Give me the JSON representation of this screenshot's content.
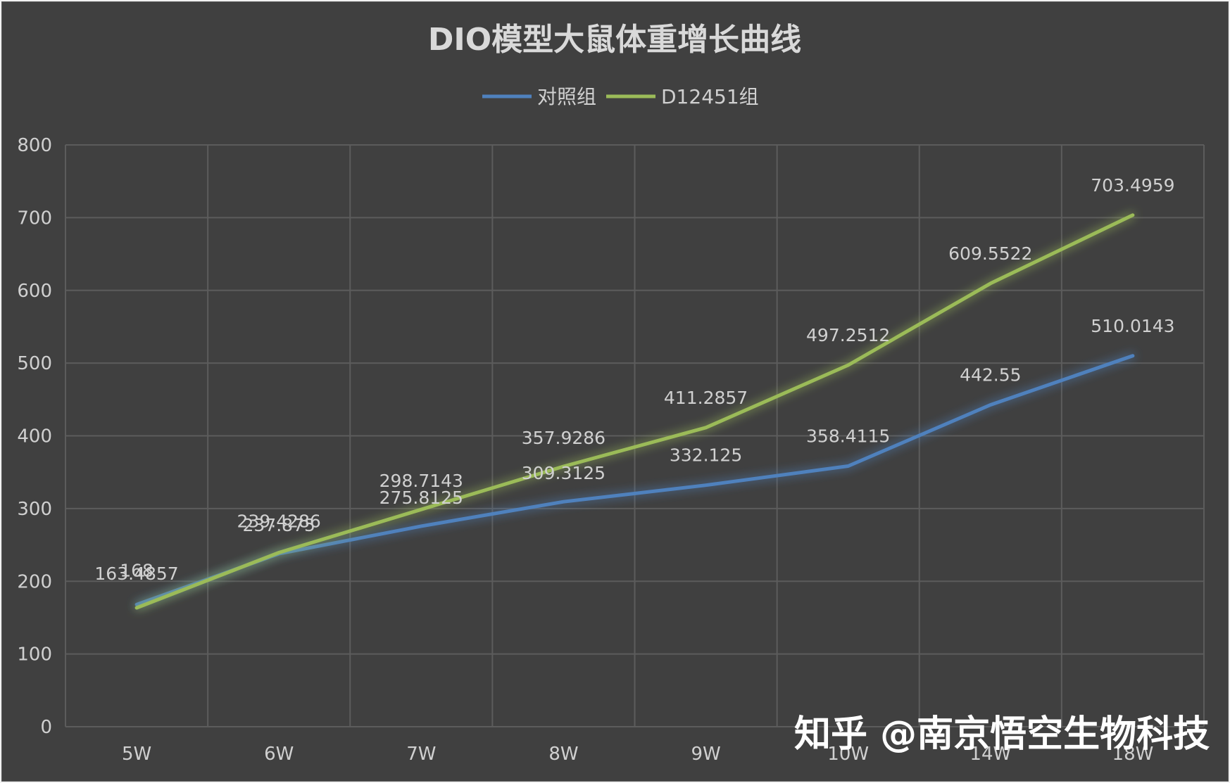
{
  "chart_data": {
    "type": "line",
    "title": "DIO模型大鼠体重增长曲线",
    "categories": [
      "5W",
      "6W",
      "7W",
      "8W",
      "9W",
      "10W",
      "14W",
      "18W"
    ],
    "series": [
      {
        "name": "对照组",
        "color": "#4f81bd",
        "values": [
          168,
          237.875,
          275.8125,
          309.3125,
          332.125,
          358.4115,
          442.55,
          510.0143
        ],
        "labels": [
          "168",
          "237.875",
          "275.8125",
          "309.3125",
          "332.125",
          "358.4115",
          "442.55",
          "510.0143"
        ]
      },
      {
        "name": "D12451组",
        "color": "#9bbb59",
        "values": [
          163.4857,
          239.4286,
          298.7143,
          357.9286,
          411.2857,
          497.2512,
          609.5522,
          703.4959
        ],
        "labels": [
          "163.4857",
          "239.4286",
          "298.7143",
          "357.9286",
          "411.2857",
          "497.2512",
          "609.5522",
          "703.4959"
        ]
      }
    ],
    "ylim": [
      0,
      800
    ],
    "yticks": [
      0,
      100,
      200,
      300,
      400,
      500,
      600,
      700,
      800
    ],
    "grid": true,
    "legend_position": "top"
  },
  "watermark": "知乎 @南京悟空生物科技"
}
